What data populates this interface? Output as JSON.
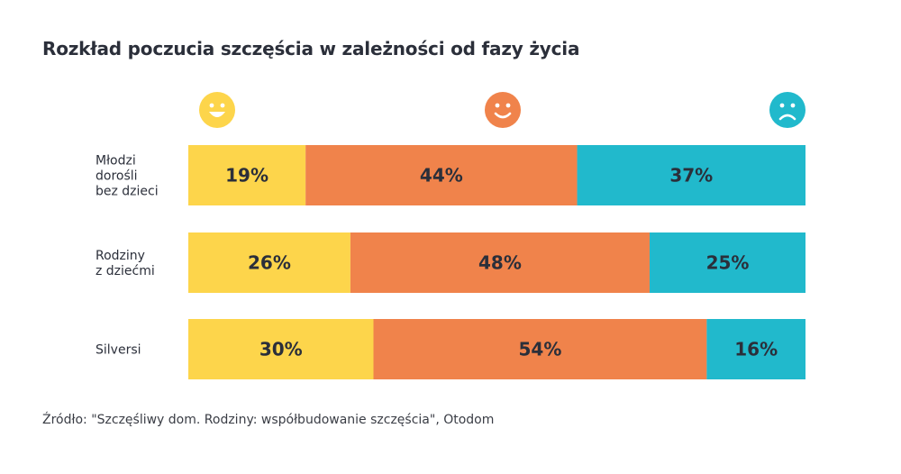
{
  "chart_data": {
    "type": "bar",
    "orientation": "horizontal",
    "stacked": true,
    "title": "Rozkład poczucia szczęścia w zależności od fazy życia",
    "categories": [
      [
        "Młodzi",
        "dorośli",
        "bez dzieci"
      ],
      [
        "Rodziny",
        "z dziećmi"
      ],
      [
        "Silversi"
      ]
    ],
    "series": [
      {
        "icon": "very-happy-face-icon",
        "color": "#fdd54b",
        "values": [
          19,
          26,
          30
        ],
        "labels": [
          "19%",
          "26%",
          "30%"
        ]
      },
      {
        "icon": "happy-face-icon",
        "color": "#f0834b",
        "values": [
          44,
          48,
          54
        ],
        "labels": [
          "44%",
          "48%",
          "54%"
        ]
      },
      {
        "icon": "sad-face-icon",
        "color": "#21b9cc",
        "values": [
          37,
          25,
          16
        ],
        "labels": [
          "37%",
          "25%",
          "16%"
        ]
      }
    ],
    "grid": false,
    "legend": "top, as face icons"
  },
  "source": "Źródło: \"Szczęśliwy dom. Rodziny: współbudowanie szczęścia\", Otodom"
}
